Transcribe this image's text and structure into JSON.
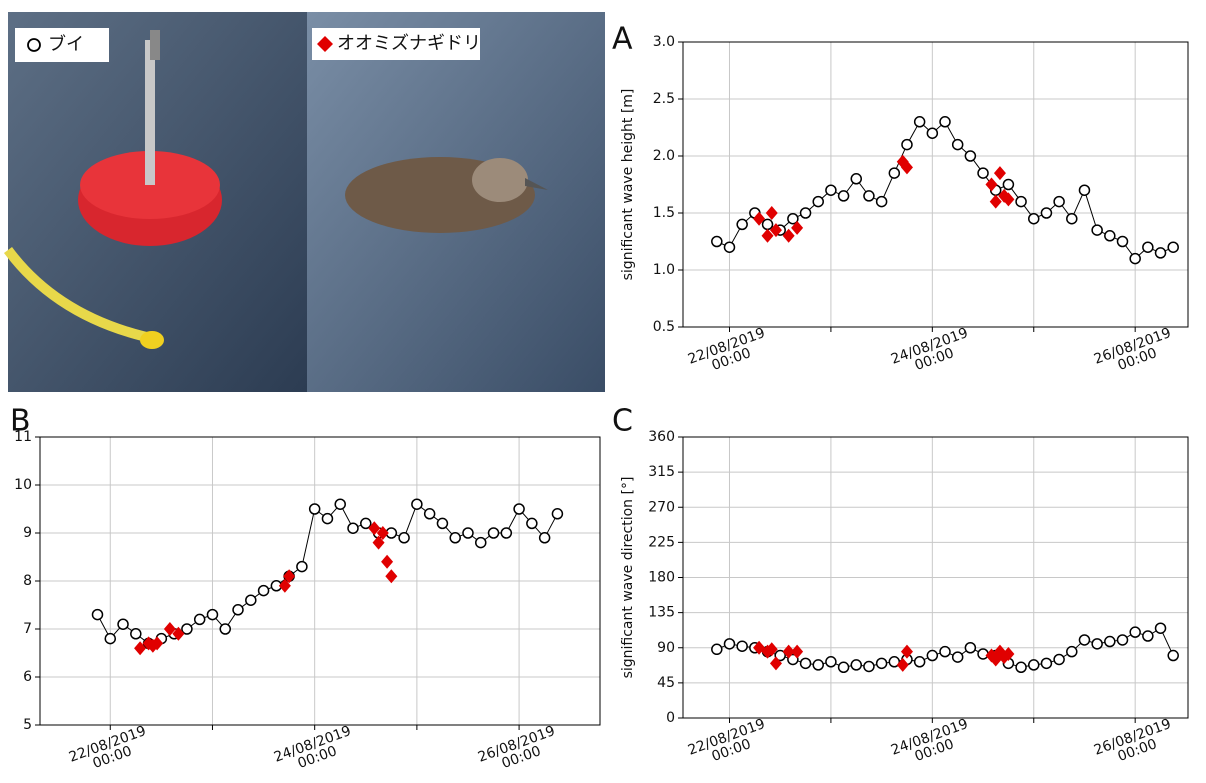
{
  "chart_data": [
    {
      "type": "line",
      "panel": "A",
      "ylabel": "significant wave height [m]",
      "xlim": [
        "2019-08-21 13:00",
        "2019-08-26 12:30"
      ],
      "ylim": [
        0.5,
        3.0
      ],
      "yticks": [
        0.5,
        {
          "value": 1,
          "label": "1.0"
        },
        1.5,
        {
          "value": 2,
          "label": "2.0"
        },
        2.5,
        {
          "value": 3,
          "label": "3.0"
        }
      ],
      "xticks": [
        {
          "value": "2019-08-22 00:00",
          "label": "22/08/2019\n00:00"
        },
        {
          "value": "2019-08-23 00:00",
          "label": null
        },
        {
          "value": "2019-08-24 00:00",
          "label": "24/08/2019\n00:00"
        },
        {
          "value": "2019-08-25 00:00",
          "label": null
        },
        {
          "value": "2019-08-26 00:00",
          "label": "26/08/2019\n00:00"
        }
      ],
      "grid": true,
      "series": [
        {
          "name": "ブイ",
          "color": "#000000",
          "marker": "circle",
          "x": [
            "2019-08-21 21:00",
            "2019-08-22 00:00",
            "2019-08-22 03:00",
            "2019-08-22 06:00",
            "2019-08-22 09:00",
            "2019-08-22 12:00",
            "2019-08-22 15:00",
            "2019-08-22 18:00",
            "2019-08-22 21:00",
            "2019-08-23 00:00",
            "2019-08-23 03:00",
            "2019-08-23 06:00",
            "2019-08-23 09:00",
            "2019-08-23 12:00",
            "2019-08-23 15:00",
            "2019-08-23 18:00",
            "2019-08-23 21:00",
            "2019-08-24 00:00",
            "2019-08-24 03:00",
            "2019-08-24 06:00",
            "2019-08-24 09:00",
            "2019-08-24 12:00",
            "2019-08-24 15:00",
            "2019-08-24 18:00",
            "2019-08-24 21:00",
            "2019-08-25 00:00",
            "2019-08-25 03:00",
            "2019-08-25 06:00",
            "2019-08-25 09:00",
            "2019-08-25 12:00",
            "2019-08-25 15:00",
            "2019-08-25 18:00",
            "2019-08-25 21:00",
            "2019-08-26 00:00",
            "2019-08-26 03:00",
            "2019-08-26 06:00",
            "2019-08-26 09:00"
          ],
          "values": [
            1.25,
            1.2,
            1.4,
            1.5,
            1.4,
            1.35,
            1.45,
            1.5,
            1.6,
            1.7,
            1.65,
            1.8,
            1.65,
            1.6,
            1.85,
            2.1,
            2.3,
            2.2,
            2.3,
            2.1,
            2.0,
            1.85,
            1.7,
            1.75,
            1.6,
            1.45,
            1.5,
            1.6,
            1.45,
            1.7,
            1.35,
            1.3,
            1.25,
            1.1,
            1.2,
            1.15,
            1.2
          ]
        },
        {
          "name": "オオミズナギドリ",
          "color": "#e00000",
          "marker": "diamond",
          "x": [
            "2019-08-22 07:00",
            "2019-08-22 09:00",
            "2019-08-22 10:00",
            "2019-08-22 11:00",
            "2019-08-22 14:00",
            "2019-08-22 16:00",
            "2019-08-23 17:00",
            "2019-08-23 18:00",
            "2019-08-24 14:00",
            "2019-08-24 15:00",
            "2019-08-24 16:00",
            "2019-08-24 17:00",
            "2019-08-24 18:00"
          ],
          "values": [
            1.45,
            1.3,
            1.5,
            1.35,
            1.3,
            1.37,
            1.95,
            1.9,
            1.75,
            1.6,
            1.85,
            1.65,
            1.62
          ]
        }
      ]
    },
    {
      "type": "line",
      "panel": "B",
      "ylabel": "significant wave period [s]",
      "xlim": [
        "2019-08-21 07:30",
        "2019-08-26 19:00"
      ],
      "ylim": [
        5,
        11
      ],
      "yticks": [
        5,
        6,
        7,
        8,
        9,
        10,
        11
      ],
      "xticks": [
        {
          "value": "2019-08-22 00:00",
          "label": "22/08/2019\n00:00"
        },
        {
          "value": "2019-08-23 00:00",
          "label": null
        },
        {
          "value": "2019-08-24 00:00",
          "label": "24/08/2019\n00:00"
        },
        {
          "value": "2019-08-25 00:00",
          "label": null
        },
        {
          "value": "2019-08-26 00:00",
          "label": "26/08/2019\n00:00"
        }
      ],
      "grid": true,
      "series": [
        {
          "color": "#000000",
          "marker": "circle",
          "x": [
            "2019-08-21 21:00",
            "2019-08-22 00:00",
            "2019-08-22 03:00",
            "2019-08-22 06:00",
            "2019-08-22 09:00",
            "2019-08-22 12:00",
            "2019-08-22 15:00",
            "2019-08-22 18:00",
            "2019-08-22 21:00",
            "2019-08-23 00:00",
            "2019-08-23 03:00",
            "2019-08-23 06:00",
            "2019-08-23 09:00",
            "2019-08-23 12:00",
            "2019-08-23 15:00",
            "2019-08-23 18:00",
            "2019-08-23 21:00",
            "2019-08-24 00:00",
            "2019-08-24 03:00",
            "2019-08-24 06:00",
            "2019-08-24 09:00",
            "2019-08-24 12:00",
            "2019-08-24 15:00",
            "2019-08-24 18:00",
            "2019-08-24 21:00",
            "2019-08-25 00:00",
            "2019-08-25 03:00",
            "2019-08-25 06:00",
            "2019-08-25 09:00",
            "2019-08-25 12:00",
            "2019-08-25 15:00",
            "2019-08-25 18:00",
            "2019-08-25 21:00",
            "2019-08-26 00:00",
            "2019-08-26 03:00",
            "2019-08-26 06:00",
            "2019-08-26 09:00"
          ],
          "values": [
            7.3,
            6.8,
            7.1,
            6.9,
            6.7,
            6.8,
            6.9,
            7.0,
            7.2,
            7.3,
            7.0,
            7.4,
            7.6,
            7.8,
            7.9,
            8.1,
            8.3,
            9.5,
            9.3,
            9.6,
            9.1,
            9.2,
            9.0,
            9.0,
            8.9,
            9.6,
            9.4,
            9.2,
            8.9,
            9.0,
            8.8,
            9.0,
            9.0,
            9.5,
            9.2,
            8.9,
            9.4
          ]
        },
        {
          "color": "#e00000",
          "marker": "diamond",
          "x": [
            "2019-08-22 07:00",
            "2019-08-22 09:00",
            "2019-08-22 10:00",
            "2019-08-22 11:00",
            "2019-08-22 14:00",
            "2019-08-22 16:00",
            "2019-08-23 17:00",
            "2019-08-23 18:00",
            "2019-08-24 14:00",
            "2019-08-24 15:00",
            "2019-08-24 16:00",
            "2019-08-24 17:00",
            "2019-08-24 18:00"
          ],
          "values": [
            6.6,
            6.7,
            6.65,
            6.7,
            7.0,
            6.9,
            7.9,
            8.1,
            9.1,
            8.8,
            9.0,
            8.4,
            8.1
          ]
        }
      ]
    },
    {
      "type": "line",
      "panel": "C",
      "ylabel": "significant wave direction [°]",
      "xlim": [
        "2019-08-21 13:00",
        "2019-08-26 12:30"
      ],
      "ylim": [
        0,
        360
      ],
      "yticks": [
        0,
        45,
        90,
        135,
        180,
        225,
        270,
        315,
        360
      ],
      "xticks": [
        {
          "value": "2019-08-22 00:00",
          "label": "22/08/2019\n00:00"
        },
        {
          "value": "2019-08-23 00:00",
          "label": null
        },
        {
          "value": "2019-08-24 00:00",
          "label": "24/08/2019\n00:00"
        },
        {
          "value": "2019-08-25 00:00",
          "label": null
        },
        {
          "value": "2019-08-26 00:00",
          "label": "26/08/2019\n00:00"
        }
      ],
      "grid": true,
      "series": [
        {
          "color": "#000000",
          "marker": "circle",
          "x": [
            "2019-08-21 21:00",
            "2019-08-22 00:00",
            "2019-08-22 03:00",
            "2019-08-22 06:00",
            "2019-08-22 09:00",
            "2019-08-22 12:00",
            "2019-08-22 15:00",
            "2019-08-22 18:00",
            "2019-08-22 21:00",
            "2019-08-23 00:00",
            "2019-08-23 03:00",
            "2019-08-23 06:00",
            "2019-08-23 09:00",
            "2019-08-23 12:00",
            "2019-08-23 15:00",
            "2019-08-23 18:00",
            "2019-08-23 21:00",
            "2019-08-24 00:00",
            "2019-08-24 03:00",
            "2019-08-24 06:00",
            "2019-08-24 09:00",
            "2019-08-24 12:00",
            "2019-08-24 15:00",
            "2019-08-24 18:00",
            "2019-08-24 21:00",
            "2019-08-25 00:00",
            "2019-08-25 03:00",
            "2019-08-25 06:00",
            "2019-08-25 09:00",
            "2019-08-25 12:00",
            "2019-08-25 15:00",
            "2019-08-25 18:00",
            "2019-08-25 21:00",
            "2019-08-26 00:00",
            "2019-08-26 03:00",
            "2019-08-26 06:00",
            "2019-08-26 09:00"
          ],
          "values": [
            88,
            95,
            92,
            90,
            85,
            80,
            75,
            70,
            68,
            72,
            65,
            68,
            66,
            70,
            72,
            75,
            72,
            80,
            85,
            78,
            90,
            82,
            80,
            70,
            65,
            68,
            70,
            75,
            85,
            100,
            95,
            98,
            100,
            110,
            105,
            115,
            80
          ]
        },
        {
          "color": "#e00000",
          "marker": "diamond",
          "x": [
            "2019-08-22 07:00",
            "2019-08-22 09:00",
            "2019-08-22 10:00",
            "2019-08-22 11:00",
            "2019-08-22 14:00",
            "2019-08-22 16:00",
            "2019-08-23 17:00",
            "2019-08-23 18:00",
            "2019-08-24 14:00",
            "2019-08-24 15:00",
            "2019-08-24 16:00",
            "2019-08-24 17:00",
            "2019-08-24 18:00"
          ],
          "values": [
            90,
            85,
            88,
            70,
            85,
            85,
            68,
            85,
            80,
            75,
            85,
            78,
            82
          ]
        }
      ]
    }
  ]
}
